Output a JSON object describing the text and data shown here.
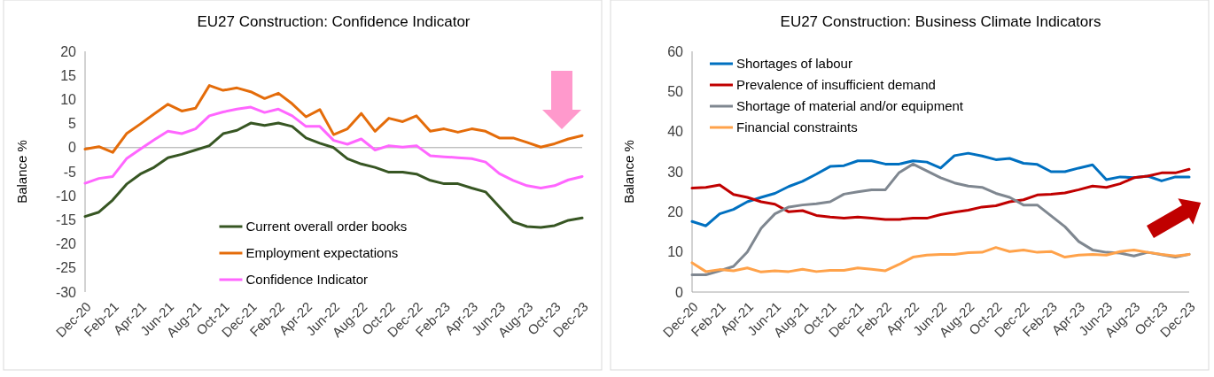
{
  "chart_data": [
    {
      "type": "line",
      "title": "EU27 Construction: Confidence Indicator",
      "ylabel": "Balance %",
      "categories": [
        "Dec-20",
        null,
        "Feb-21",
        null,
        "Apr-21",
        null,
        "Jun-21",
        null,
        "Aug-21",
        null,
        "Oct-21",
        null,
        "Dec-21",
        null,
        "Feb-22",
        null,
        "Apr-22",
        null,
        "Jun-22",
        null,
        "Aug-22",
        null,
        "Oct-22",
        null,
        "Dec-22",
        null,
        "Feb-23",
        null,
        "Apr-23",
        null,
        "Jun-23",
        null,
        "Aug-23",
        null,
        "Oct-23",
        null,
        "Dec-23"
      ],
      "ylim": [
        -30,
        20
      ],
      "yticks": [
        -30,
        -25,
        -20,
        -15,
        -10,
        -5,
        0,
        5,
        10,
        15,
        20
      ],
      "legend": "bottom",
      "series": [
        {
          "name": "Current overall order books",
          "color": "#375623",
          "values": [
            -14.3,
            -13.4,
            -10.9,
            -7.6,
            -5.5,
            -4.1,
            -2.1,
            -1.4,
            -0.5,
            0.4,
            2.9,
            3.6,
            5.1,
            4.6,
            5.1,
            4.4,
            2.0,
            0.9,
            0,
            -2.3,
            -3.4,
            -4.1,
            -5.1,
            -5.1,
            -5.5,
            -6.8,
            -7.5,
            -7.5,
            -8.4,
            -9.2,
            -12.3,
            -15.4,
            -16.4,
            -16.6,
            -16.2,
            -15.1,
            -14.6
          ]
        },
        {
          "name": "Employment expectations",
          "color": "#e46c0a",
          "values": [
            -0.3,
            0.2,
            -1.0,
            2.9,
            4.9,
            7.0,
            9.0,
            7.6,
            8.2,
            12.9,
            11.9,
            12.4,
            11.6,
            10.2,
            11.3,
            9.1,
            6.4,
            7.9,
            2.7,
            3.9,
            7.1,
            3.4,
            6.1,
            5.4,
            6.6,
            3.4,
            3.9,
            3.2,
            3.9,
            3.4,
            2.0,
            2.0,
            1.1,
            0.1,
            0.8,
            1.8,
            2.5
          ]
        },
        {
          "name": "Confidence Indicator",
          "color": "#ff66ff",
          "values": [
            -7.4,
            -6.4,
            -6.0,
            -2.3,
            -0.3,
            1.6,
            3.4,
            2.9,
            3.9,
            6.6,
            7.4,
            8.0,
            8.4,
            7.3,
            8.0,
            6.6,
            4.4,
            4.4,
            1.5,
            0.7,
            1.8,
            -0.5,
            0.4,
            0.1,
            0.4,
            -1.7,
            -1.9,
            -2.1,
            -2.3,
            -3.0,
            -5.4,
            -6.8,
            -7.9,
            -8.4,
            -7.9,
            -6.7,
            -6.0
          ]
        }
      ]
    },
    {
      "type": "line",
      "title": "EU27 Construction: Business Climate Indicators",
      "ylabel": "Balance %",
      "categories": [
        "Dec-20",
        null,
        "Feb-21",
        null,
        "Apr-21",
        null,
        "Jun-21",
        null,
        "Aug-21",
        null,
        "Oct-21",
        null,
        "Dec-21",
        null,
        "Feb-22",
        null,
        "Apr-22",
        null,
        "Jun-22",
        null,
        "Aug-22",
        null,
        "Oct-22",
        null,
        "Dec-22",
        null,
        "Feb-23",
        null,
        "Apr-23",
        null,
        "Jun-23",
        null,
        "Aug-23",
        null,
        "Oct-23",
        null,
        "Dec-23"
      ],
      "ylim": [
        0,
        60
      ],
      "yticks": [
        0,
        10,
        20,
        30,
        40,
        50,
        60
      ],
      "legend": "top left",
      "series": [
        {
          "name": "Shortages of labour",
          "color": "#0070c0",
          "values": [
            17.6,
            16.5,
            19.5,
            20.6,
            22.5,
            23.6,
            24.6,
            26.3,
            27.6,
            29.4,
            31.3,
            31.5,
            32.7,
            32.7,
            31.9,
            31.9,
            32.7,
            32.4,
            30.9,
            34.0,
            34.6,
            33.9,
            33.0,
            33.3,
            32.1,
            31.8,
            30.0,
            30.0,
            30.9,
            31.7,
            28.0,
            28.7,
            28.5,
            28.9,
            27.7,
            28.7,
            28.7
          ]
        },
        {
          "name": "Prevalence of insufficient demand",
          "color": "#c00000",
          "values": [
            25.9,
            26.1,
            26.7,
            24.3,
            23.6,
            22.5,
            21.9,
            20.0,
            20.3,
            19.1,
            18.7,
            18.4,
            18.7,
            18.4,
            18.1,
            18.1,
            18.4,
            18.4,
            19.3,
            19.9,
            20.4,
            21.2,
            21.5,
            22.5,
            23.0,
            24.2,
            24.4,
            24.7,
            25.5,
            26.4,
            26.1,
            27.0,
            28.5,
            28.9,
            29.7,
            29.7,
            30.6
          ]
        },
        {
          "name": "Shortage of material and/or equipment",
          "color": "#7f8790",
          "values": [
            4.3,
            4.3,
            5.3,
            6.4,
            10.0,
            15.9,
            19.5,
            21.2,
            21.7,
            22.0,
            22.5,
            24.4,
            25.0,
            25.5,
            25.5,
            29.8,
            31.9,
            30.2,
            28.5,
            27.2,
            26.4,
            26.1,
            24.6,
            23.6,
            21.7,
            21.7,
            19.0,
            16.3,
            12.6,
            10.5,
            9.9,
            9.7,
            9.0,
            9.9,
            9.3,
            8.7,
            9.4
          ]
        },
        {
          "name": "Financial constraints",
          "color": "#ffa24a",
          "values": [
            7.3,
            5.1,
            5.6,
            5.3,
            6.0,
            5.0,
            5.3,
            5.1,
            5.7,
            5.1,
            5.4,
            5.4,
            6.0,
            5.7,
            5.3,
            6.9,
            8.7,
            9.2,
            9.4,
            9.4,
            9.8,
            9.9,
            11.1,
            10.1,
            10.5,
            9.9,
            10.1,
            8.7,
            9.2,
            9.4,
            9.2,
            10.1,
            10.5,
            9.9,
            9.4,
            9.0,
            9.4
          ]
        }
      ]
    }
  ]
}
